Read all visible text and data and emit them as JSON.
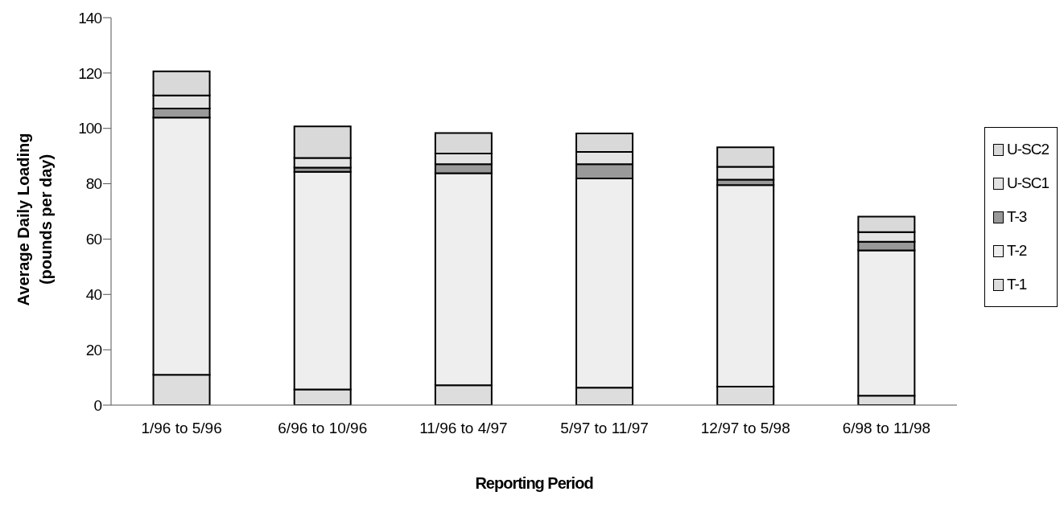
{
  "chart_data": {
    "type": "bar",
    "stacked": true,
    "xlabel": "Reporting Period",
    "ylabel": "Average Daily Loading\n(pounds per day)",
    "categories": [
      "1/96 to  5/96",
      "6/96 to  10/96",
      "11/96 to  4/97",
      "5/97 to  11/97",
      "12/97 to  5/98",
      "6/98 to  11/98"
    ],
    "series": [
      {
        "name": "T-1",
        "color": "#dddddd",
        "values": [
          11.0,
          5.7,
          7.2,
          6.3,
          6.7,
          3.4
        ]
      },
      {
        "name": "T-2",
        "color": "#eeeeee",
        "values": [
          92.9,
          78.6,
          76.6,
          75.6,
          72.8,
          52.5
        ]
      },
      {
        "name": "T-3",
        "color": "#999999",
        "values": [
          3.3,
          1.5,
          3.3,
          5.2,
          2.0,
          3.1
        ]
      },
      {
        "name": "U-SC1",
        "color": "#e3e3e3",
        "values": [
          4.7,
          3.5,
          3.8,
          4.4,
          4.6,
          3.5
        ]
      },
      {
        "name": "U-SC2",
        "color": "#d9d9d9",
        "values": [
          8.7,
          11.4,
          7.4,
          6.7,
          7.1,
          5.6
        ]
      }
    ],
    "ylim": [
      0,
      140
    ],
    "yticks": [
      0,
      20,
      40,
      60,
      80,
      100,
      120,
      140
    ],
    "legend": "right"
  }
}
